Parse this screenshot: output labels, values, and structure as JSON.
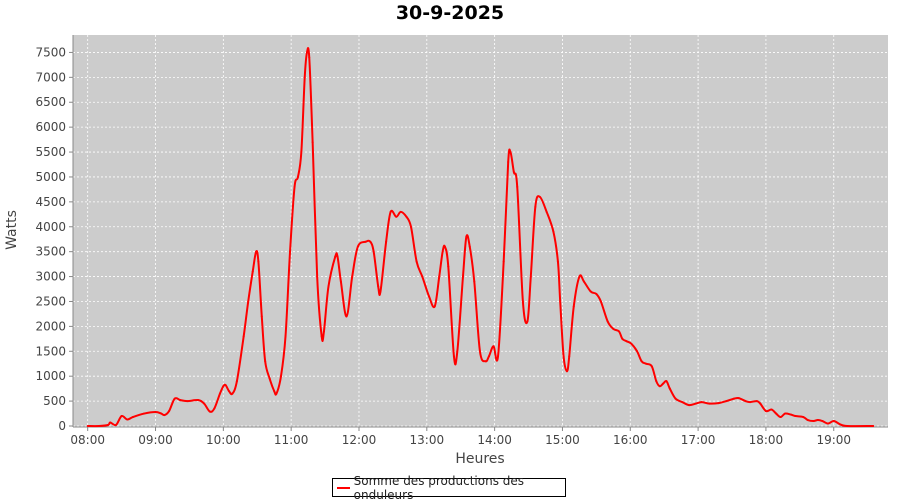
{
  "chart_data": {
    "type": "line",
    "title": "30-9-2025",
    "xlabel": "Heures",
    "ylabel": "Watts",
    "xlim": [
      "07:47",
      "19:48"
    ],
    "ylim": [
      0,
      7850
    ],
    "grid": true,
    "legend_position": "bottom",
    "background_color": "#cccccc",
    "series_color": "#ff0000",
    "x_ticks": [
      "08:00",
      "09:00",
      "10:00",
      "11:00",
      "12:00",
      "13:00",
      "14:00",
      "15:00",
      "16:00",
      "17:00",
      "18:00",
      "19:00"
    ],
    "y_ticks": [
      0,
      500,
      1000,
      1500,
      2000,
      2500,
      3000,
      3500,
      4000,
      4500,
      5000,
      5500,
      6000,
      6500,
      7000,
      7500
    ],
    "series": [
      {
        "name": "Somme des productions des onduleurs",
        "points": [
          [
            "08:00",
            0
          ],
          [
            "08:10",
            0
          ],
          [
            "08:18",
            20
          ],
          [
            "08:20",
            70
          ],
          [
            "08:25",
            20
          ],
          [
            "08:30",
            200
          ],
          [
            "08:35",
            130
          ],
          [
            "08:40",
            180
          ],
          [
            "08:50",
            250
          ],
          [
            "09:00",
            280
          ],
          [
            "09:05",
            250
          ],
          [
            "09:08",
            220
          ],
          [
            "09:12",
            300
          ],
          [
            "09:17",
            550
          ],
          [
            "09:22",
            520
          ],
          [
            "09:28",
            500
          ],
          [
            "09:38",
            520
          ],
          [
            "09:43",
            450
          ],
          [
            "09:48",
            290
          ],
          [
            "09:52",
            350
          ],
          [
            "09:57",
            650
          ],
          [
            "10:00",
            800
          ],
          [
            "10:02",
            820
          ],
          [
            "10:05",
            700
          ],
          [
            "10:08",
            650
          ],
          [
            "10:12",
            900
          ],
          [
            "10:18",
            1800
          ],
          [
            "10:22",
            2500
          ],
          [
            "10:26",
            3100
          ],
          [
            "10:29",
            3500
          ],
          [
            "10:31",
            3300
          ],
          [
            "10:34",
            2200
          ],
          [
            "10:37",
            1300
          ],
          [
            "10:41",
            950
          ],
          [
            "10:45",
            700
          ],
          [
            "10:47",
            650
          ],
          [
            "10:51",
            1000
          ],
          [
            "10:55",
            1800
          ],
          [
            "10:59",
            3500
          ],
          [
            "11:03",
            4800
          ],
          [
            "11:06",
            5000
          ],
          [
            "11:09",
            5500
          ],
          [
            "11:12",
            7000
          ],
          [
            "11:14",
            7500
          ],
          [
            "11:16",
            7400
          ],
          [
            "11:19",
            5700
          ],
          [
            "11:23",
            3000
          ],
          [
            "11:27",
            1800
          ],
          [
            "11:29",
            1900
          ],
          [
            "11:33",
            2800
          ],
          [
            "11:39",
            3400
          ],
          [
            "11:41",
            3400
          ],
          [
            "11:44",
            2900
          ],
          [
            "11:49",
            2200
          ],
          [
            "11:54",
            3000
          ],
          [
            "11:59",
            3600
          ],
          [
            "12:06",
            3700
          ],
          [
            "12:10",
            3700
          ],
          [
            "12:13",
            3500
          ],
          [
            "12:17",
            2800
          ],
          [
            "12:19",
            2700
          ],
          [
            "12:24",
            3700
          ],
          [
            "12:28",
            4300
          ],
          [
            "12:33",
            4200
          ],
          [
            "12:37",
            4300
          ],
          [
            "12:42",
            4200
          ],
          [
            "12:46",
            4000
          ],
          [
            "12:51",
            3300
          ],
          [
            "12:56",
            3000
          ],
          [
            "13:02",
            2600
          ],
          [
            "13:07",
            2400
          ],
          [
            "13:11",
            3000
          ],
          [
            "13:14",
            3500
          ],
          [
            "13:16",
            3600
          ],
          [
            "13:19",
            3200
          ],
          [
            "13:24",
            1400
          ],
          [
            "13:27",
            1500
          ],
          [
            "13:32",
            3000
          ],
          [
            "13:35",
            3800
          ],
          [
            "13:38",
            3600
          ],
          [
            "13:42",
            2900
          ],
          [
            "13:47",
            1500
          ],
          [
            "13:52",
            1300
          ],
          [
            "13:55",
            1400
          ],
          [
            "13:59",
            1600
          ],
          [
            "14:03",
            1400
          ],
          [
            "14:08",
            3300
          ],
          [
            "14:12",
            5300
          ],
          [
            "14:14",
            5500
          ],
          [
            "14:17",
            5100
          ],
          [
            "14:20",
            4800
          ],
          [
            "14:25",
            2500
          ],
          [
            "14:29",
            2100
          ],
          [
            "14:32",
            3000
          ],
          [
            "14:36",
            4400
          ],
          [
            "14:40",
            4600
          ],
          [
            "14:46",
            4300
          ],
          [
            "14:52",
            3900
          ],
          [
            "14:56",
            3300
          ],
          [
            "14:58",
            2500
          ],
          [
            "15:01",
            1400
          ],
          [
            "15:04",
            1100
          ],
          [
            "15:06",
            1400
          ],
          [
            "15:10",
            2400
          ],
          [
            "15:15",
            3000
          ],
          [
            "15:19",
            2900
          ],
          [
            "15:25",
            2700
          ],
          [
            "15:30",
            2650
          ],
          [
            "15:34",
            2500
          ],
          [
            "15:40",
            2100
          ],
          [
            "15:45",
            1950
          ],
          [
            "15:50",
            1900
          ],
          [
            "15:53",
            1750
          ],
          [
            "15:57",
            1700
          ],
          [
            "16:01",
            1650
          ],
          [
            "16:06",
            1500
          ],
          [
            "16:10",
            1300
          ],
          [
            "16:14",
            1250
          ],
          [
            "16:19",
            1200
          ],
          [
            "16:23",
            900
          ],
          [
            "16:26",
            800
          ],
          [
            "16:29",
            850
          ],
          [
            "16:32",
            900
          ],
          [
            "16:35",
            750
          ],
          [
            "16:40",
            550
          ],
          [
            "16:46",
            480
          ],
          [
            "16:52",
            420
          ],
          [
            "16:58",
            450
          ],
          [
            "17:03",
            480
          ],
          [
            "17:10",
            450
          ],
          [
            "17:18",
            460
          ],
          [
            "17:25",
            500
          ],
          [
            "17:32",
            550
          ],
          [
            "17:36",
            560
          ],
          [
            "17:42",
            500
          ],
          [
            "17:46",
            480
          ],
          [
            "17:52",
            500
          ],
          [
            "17:55",
            450
          ],
          [
            "18:00",
            300
          ],
          [
            "18:05",
            330
          ],
          [
            "18:09",
            250
          ],
          [
            "18:13",
            180
          ],
          [
            "18:17",
            250
          ],
          [
            "18:22",
            230
          ],
          [
            "18:26",
            200
          ],
          [
            "18:33",
            180
          ],
          [
            "18:37",
            120
          ],
          [
            "18:42",
            100
          ],
          [
            "18:46",
            120
          ],
          [
            "18:50",
            100
          ],
          [
            "18:55",
            50
          ],
          [
            "19:00",
            100
          ],
          [
            "19:06",
            30
          ],
          [
            "19:12",
            0
          ],
          [
            "19:35",
            0
          ]
        ]
      }
    ]
  }
}
